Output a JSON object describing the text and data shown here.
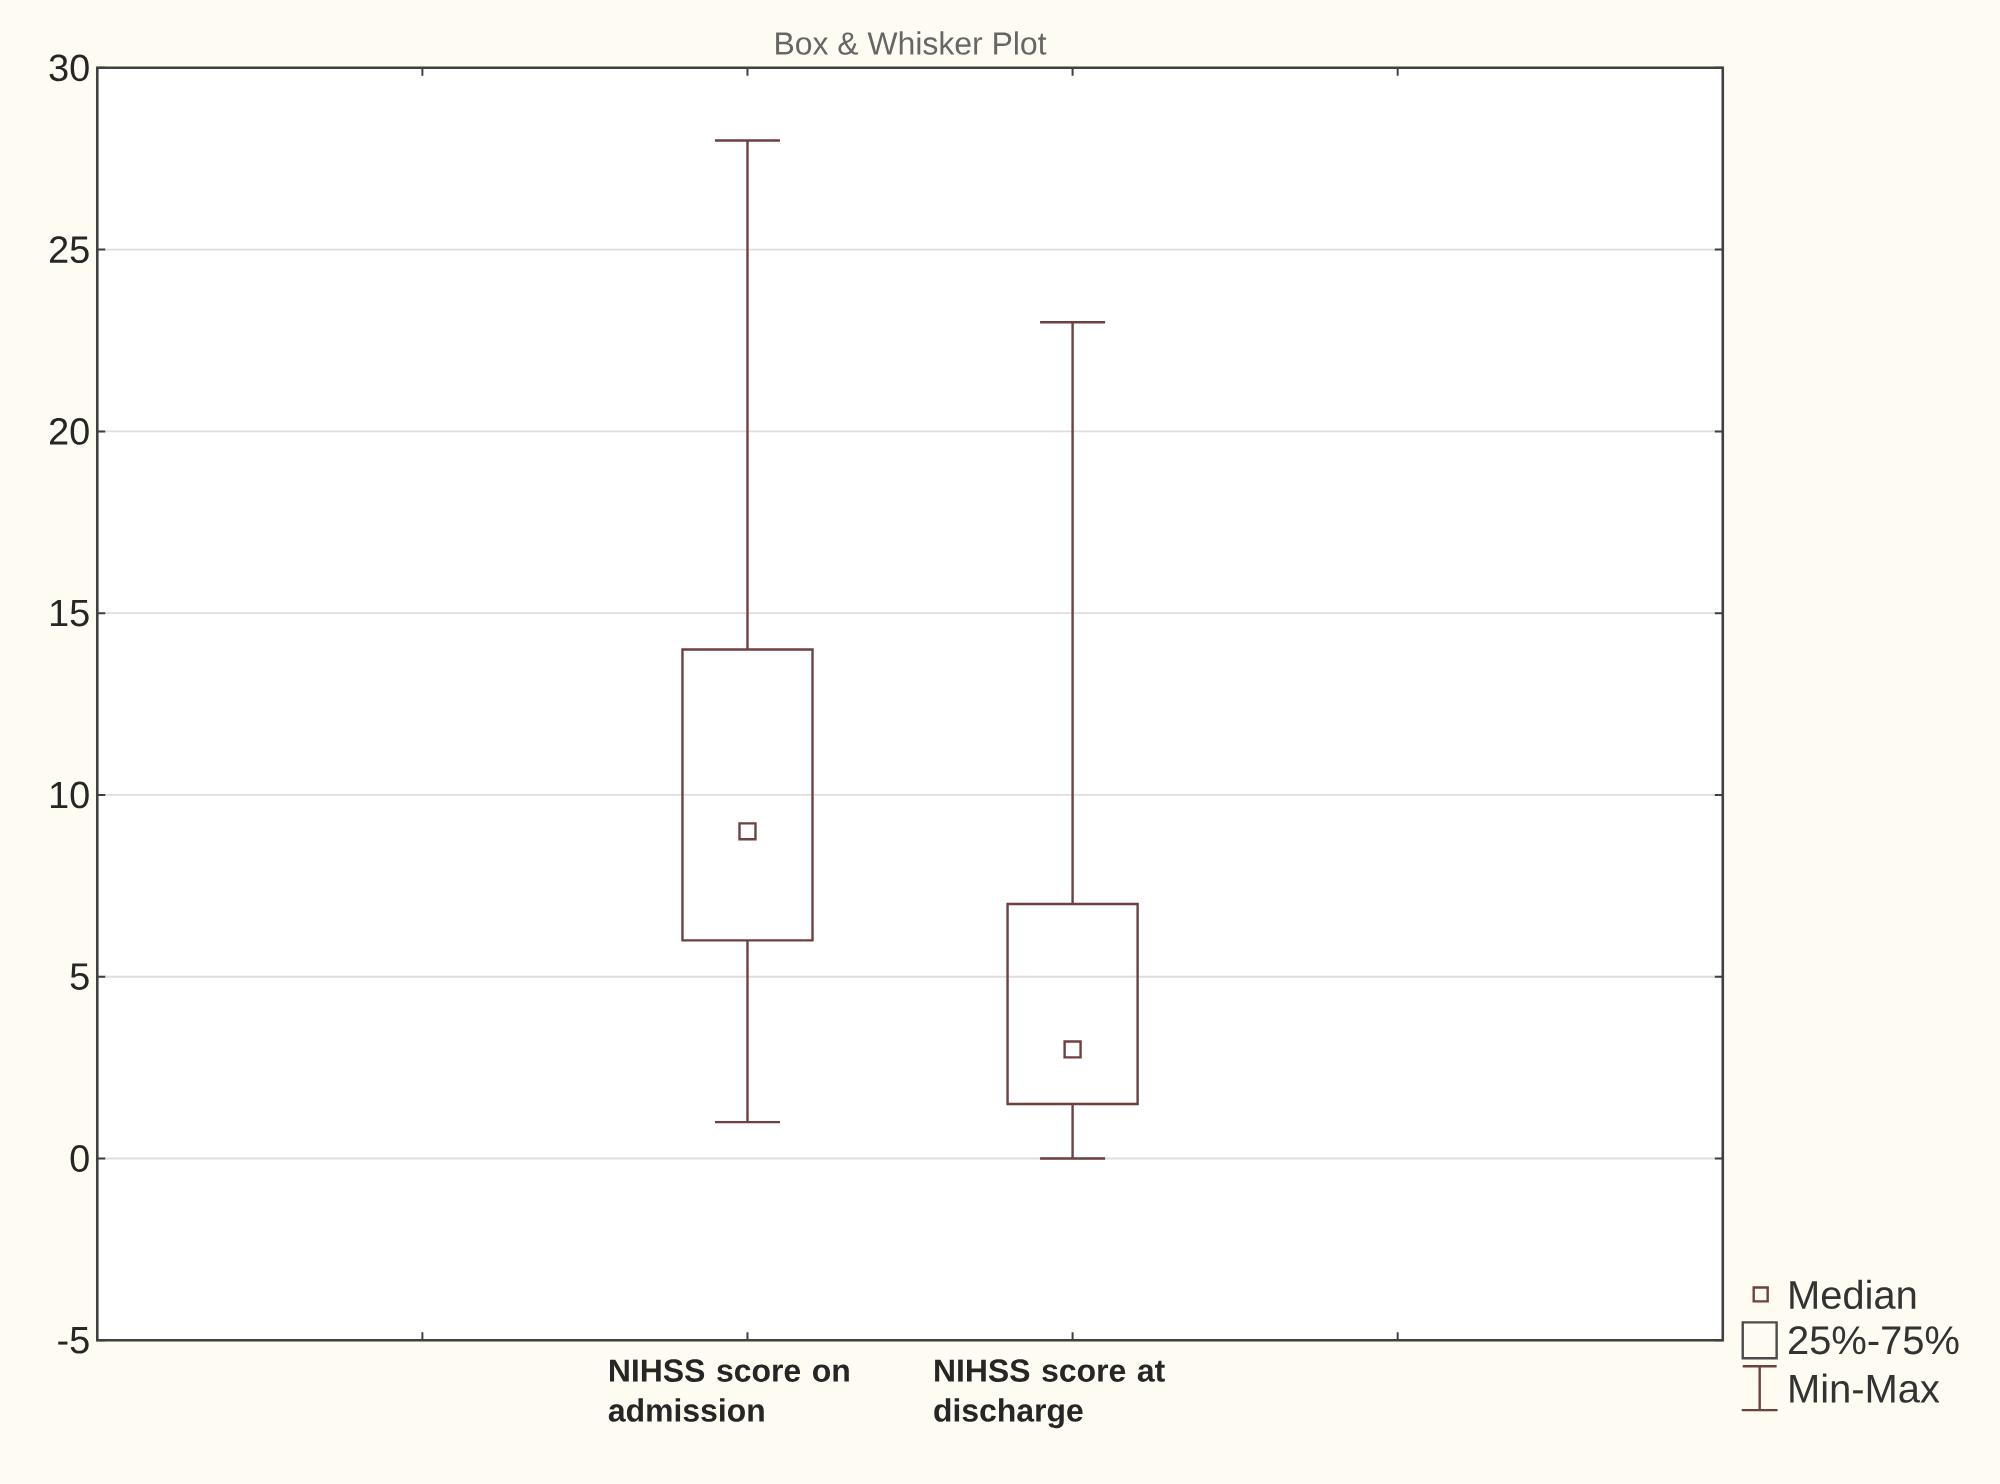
{
  "chart_data": {
    "type": "box",
    "title": "Box & Whisker Plot",
    "categories": [
      "NIHSS score on admission",
      "NIHSS score at discharge"
    ],
    "boxes": [
      {
        "low": 1,
        "q1": 6,
        "median": 9,
        "q3": 14,
        "high": 28
      },
      {
        "low": 0,
        "q1": 1.5,
        "median": 3,
        "q3": 7,
        "high": 23
      }
    ],
    "color": "#6e4040",
    "ylim": [
      -5,
      30
    ],
    "yticks": [
      -5,
      0,
      5,
      10,
      15,
      20,
      25,
      30
    ],
    "grid": "y",
    "annotations": [
      "Median",
      "25%-75%",
      "Min-Max"
    ]
  }
}
